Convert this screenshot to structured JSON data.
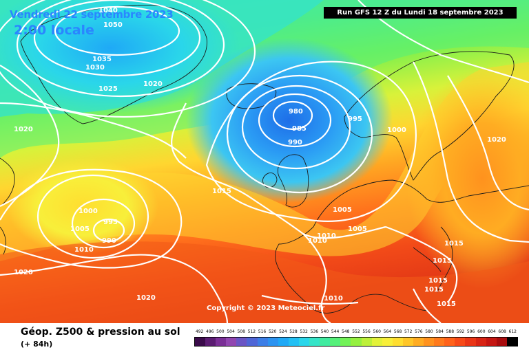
{
  "header": {
    "date": "Vendredi 22 septembre 2023",
    "local_time": "2:00 locale",
    "run_info": "Run GFS 12 Z du Lundi 18 septembre 2023"
  },
  "copyright": "Copyright © 2023 Meteociel.fr",
  "footer": {
    "title": "Géop. Z500 & pression au sol",
    "subtitle": "(+ 84h)"
  },
  "scale": {
    "labels": [
      "492",
      "496",
      "500",
      "504",
      "508",
      "512",
      "516",
      "520",
      "524",
      "528",
      "532",
      "536",
      "540",
      "544",
      "548",
      "552",
      "556",
      "560",
      "564",
      "568",
      "572",
      "576",
      "580",
      "584",
      "588",
      "592",
      "596",
      "600",
      "604",
      "608",
      "612"
    ],
    "colors": [
      "#3a0b4a",
      "#5b1c72",
      "#7a2f96",
      "#9146b0",
      "#6a55c4",
      "#4f66d6",
      "#3c7ee6",
      "#2c93f0",
      "#1fa9f6",
      "#22c0f4",
      "#2ad6ea",
      "#35e4c8",
      "#40eba0",
      "#55f07a",
      "#72f258",
      "#95f040",
      "#bdf03a",
      "#e3f23a",
      "#f8ef3a",
      "#ffde30",
      "#ffc628",
      "#ffac22",
      "#ff921e",
      "#ff7a1c",
      "#ff621a",
      "#f74a18",
      "#ea3516",
      "#d82414",
      "#c51612",
      "#a80c0e",
      "#000000"
    ]
  },
  "isobars": [
    {
      "text": "1040"
    },
    {
      "text": "1050"
    },
    {
      "text": "1035"
    },
    {
      "text": "1030"
    },
    {
      "text": "1025"
    },
    {
      "text": "1020"
    },
    {
      "text": "980"
    },
    {
      "text": "985"
    },
    {
      "text": "990"
    },
    {
      "text": "995"
    },
    {
      "text": "1000"
    },
    {
      "text": "1020"
    },
    {
      "text": "1020"
    },
    {
      "text": "1015"
    },
    {
      "text": "1000"
    },
    {
      "text": "1005"
    },
    {
      "text": "1010"
    },
    {
      "text": "995"
    },
    {
      "text": "990"
    },
    {
      "text": "1005"
    },
    {
      "text": "1005"
    },
    {
      "text": "1010"
    },
    {
      "text": "1010"
    },
    {
      "text": "1015"
    },
    {
      "text": "1015"
    },
    {
      "text": "1015"
    },
    {
      "text": "1015"
    },
    {
      "text": "1015"
    },
    {
      "text": "1010"
    },
    {
      "text": "1020"
    },
    {
      "text": "1020"
    }
  ]
}
